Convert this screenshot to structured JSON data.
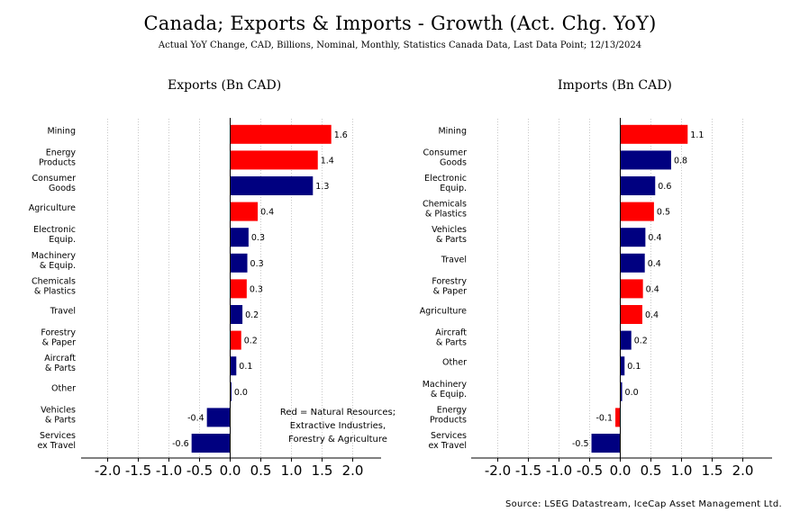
{
  "title": "Canada; Exports & Imports - Growth (Act. Chg. YoY)",
  "subtitle": "Actual YoY Change, CAD, Billions, Nominal, Monthly, Statistics Canada Data, Last Data Point; 12/13/2024",
  "source": "Source: LSEG Datastream, IceCap Asset Management Ltd.",
  "colors": {
    "natural_resources": "#ff0000",
    "other": "#000080",
    "grid": "#c8c8c8",
    "axis": "#000000"
  },
  "chart_data": [
    {
      "type": "bar",
      "orientation": "horizontal",
      "title": "Exports (Bn CAD)",
      "xlim": [
        -2.5,
        2.5
      ],
      "xticks": [
        "-2.0",
        "-1.5",
        "-1.0",
        "-0.5",
        "0.0",
        "0.5",
        "1.0",
        "1.5",
        "2.0"
      ],
      "annotation": [
        "Red = Natural Resources;",
        "Extractive Industries,",
        "Forestry & Agriculture"
      ],
      "categories": [
        [
          "Mining"
        ],
        [
          "Energy",
          "Products"
        ],
        [
          "Consumer",
          "Goods"
        ],
        [
          "Agriculture"
        ],
        [
          "Electronic",
          "Equip."
        ],
        [
          "Machinery",
          "& Equip."
        ],
        [
          "Chemicals",
          "& Plastics"
        ],
        [
          "Travel"
        ],
        [
          "Forestry",
          "& Paper"
        ],
        [
          "Aircraft",
          "& Parts"
        ],
        [
          "Other"
        ],
        [
          "Vehicles",
          "& Parts"
        ],
        [
          "Services",
          "ex Travel"
        ]
      ],
      "values": [
        1.65,
        1.43,
        1.35,
        0.45,
        0.3,
        0.28,
        0.27,
        0.2,
        0.18,
        0.1,
        0.02,
        -0.38,
        -0.63
      ],
      "labels": [
        "1.6",
        "1.4",
        "1.3",
        "0.4",
        "0.3",
        "0.3",
        "0.3",
        "0.2",
        "0.2",
        "0.1",
        "0.0",
        "-0.4",
        "-0.6"
      ],
      "natural_resource": [
        true,
        true,
        false,
        true,
        false,
        false,
        true,
        false,
        true,
        false,
        false,
        false,
        false
      ]
    },
    {
      "type": "bar",
      "orientation": "horizontal",
      "title": "Imports (Bn CAD)",
      "xlim": [
        -2.5,
        2.5
      ],
      "xticks": [
        "-2.0",
        "-1.5",
        "-1.0",
        "-0.5",
        "0.0",
        "0.5",
        "1.0",
        "1.5",
        "2.0"
      ],
      "categories": [
        [
          "Mining"
        ],
        [
          "Consumer",
          "Goods"
        ],
        [
          "Electronic",
          "Equip."
        ],
        [
          "Chemicals",
          "& Plastics"
        ],
        [
          "Vehicles",
          "& Parts"
        ],
        [
          "Travel"
        ],
        [
          "Forestry",
          "& Paper"
        ],
        [
          "Agriculture"
        ],
        [
          "Aircraft",
          "& Parts"
        ],
        [
          "Other"
        ],
        [
          "Machinery",
          "& Equip."
        ],
        [
          "Energy",
          "Products"
        ],
        [
          "Services",
          "ex Travel"
        ]
      ],
      "values": [
        1.1,
        0.83,
        0.57,
        0.55,
        0.41,
        0.4,
        0.37,
        0.36,
        0.18,
        0.07,
        0.03,
        -0.08,
        -0.47
      ],
      "labels": [
        "1.1",
        "0.8",
        "0.6",
        "0.5",
        "0.4",
        "0.4",
        "0.4",
        "0.4",
        "0.2",
        "0.1",
        "0.0",
        "-0.1",
        "-0.5"
      ],
      "natural_resource": [
        true,
        false,
        false,
        true,
        false,
        false,
        true,
        true,
        false,
        false,
        false,
        true,
        false
      ]
    }
  ],
  "panel_titles": [
    "Exports (Bn CAD)",
    "Imports (Bn CAD)"
  ]
}
